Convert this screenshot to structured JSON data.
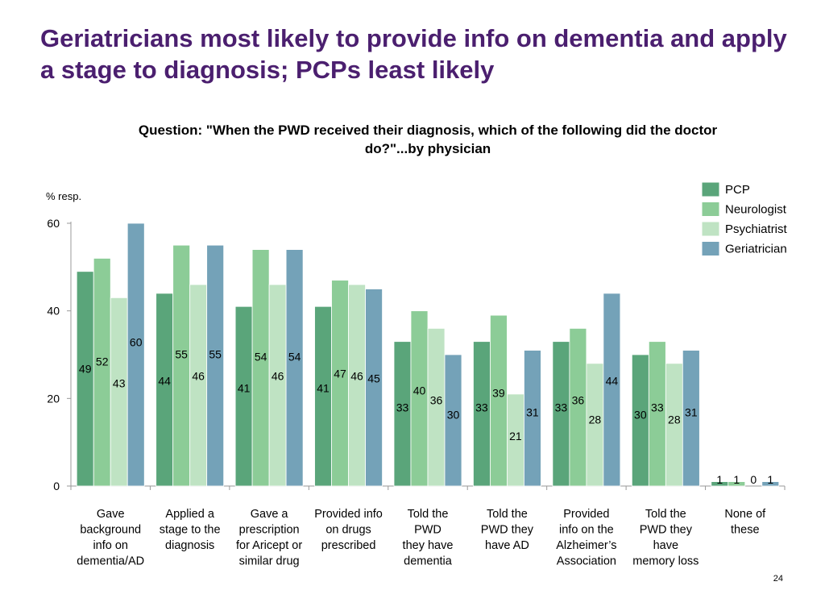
{
  "slide": {
    "title": "Geriatricians most likely to provide info on dementia and apply a stage to diagnosis; PCPs least likely",
    "page_number": "24"
  },
  "chart_data": {
    "type": "bar",
    "title": "Question: \"When the PWD received their diagnosis, which of the following did the doctor do?\"...by physician",
    "title_lines": [
      "Question: \"When the PWD received their diagnosis, which of the following did the doctor",
      "do?\"...by physician"
    ],
    "xlabel": "",
    "ylabel": "% resp.",
    "ylim": [
      0,
      60
    ],
    "yticks": [
      0,
      20,
      40,
      60
    ],
    "legend_position": "top-right",
    "categories": [
      "Gave background info on dementia/AD",
      "Applied a stage to the diagnosis",
      "Gave a prescription for Aricept or similar drug",
      "Provided info on drugs prescribed",
      "Told the PWD they have dementia",
      "Told the PWD they have AD",
      "Provided info on the Alzheimer's Association",
      "Told the PWD they have memory loss",
      "None of these"
    ],
    "category_lines": [
      [
        "Gave",
        "background",
        "info on",
        "dementia/AD"
      ],
      [
        "Applied a",
        "stage to the",
        "diagnosis"
      ],
      [
        "Gave a",
        "prescription",
        "for Aricept or",
        "similar drug"
      ],
      [
        "Provided info",
        "on drugs",
        "prescribed"
      ],
      [
        "Told the",
        "PWD",
        "they have",
        "dementia"
      ],
      [
        "Told the",
        "PWD they",
        "have AD"
      ],
      [
        "Provided",
        "info on the",
        "Alzheimer’s",
        "Association"
      ],
      [
        "Told the",
        "PWD they",
        "have",
        "memory loss"
      ],
      [
        "None of",
        "these"
      ]
    ],
    "series": [
      {
        "name": "PCP",
        "color": "#5aa57a",
        "values": [
          49,
          44,
          41,
          41,
          33,
          33,
          33,
          30,
          1
        ]
      },
      {
        "name": "Neurologist",
        "color": "#8ccc97",
        "values": [
          52,
          55,
          54,
          47,
          40,
          39,
          36,
          33,
          1
        ]
      },
      {
        "name": "Psychiatrist",
        "color": "#bfe3c3",
        "values": [
          43,
          46,
          46,
          46,
          36,
          21,
          28,
          28,
          0
        ]
      },
      {
        "name": "Geriatrician",
        "color": "#74a2b8",
        "values": [
          60,
          55,
          54,
          45,
          30,
          31,
          44,
          31,
          1
        ]
      }
    ]
  }
}
